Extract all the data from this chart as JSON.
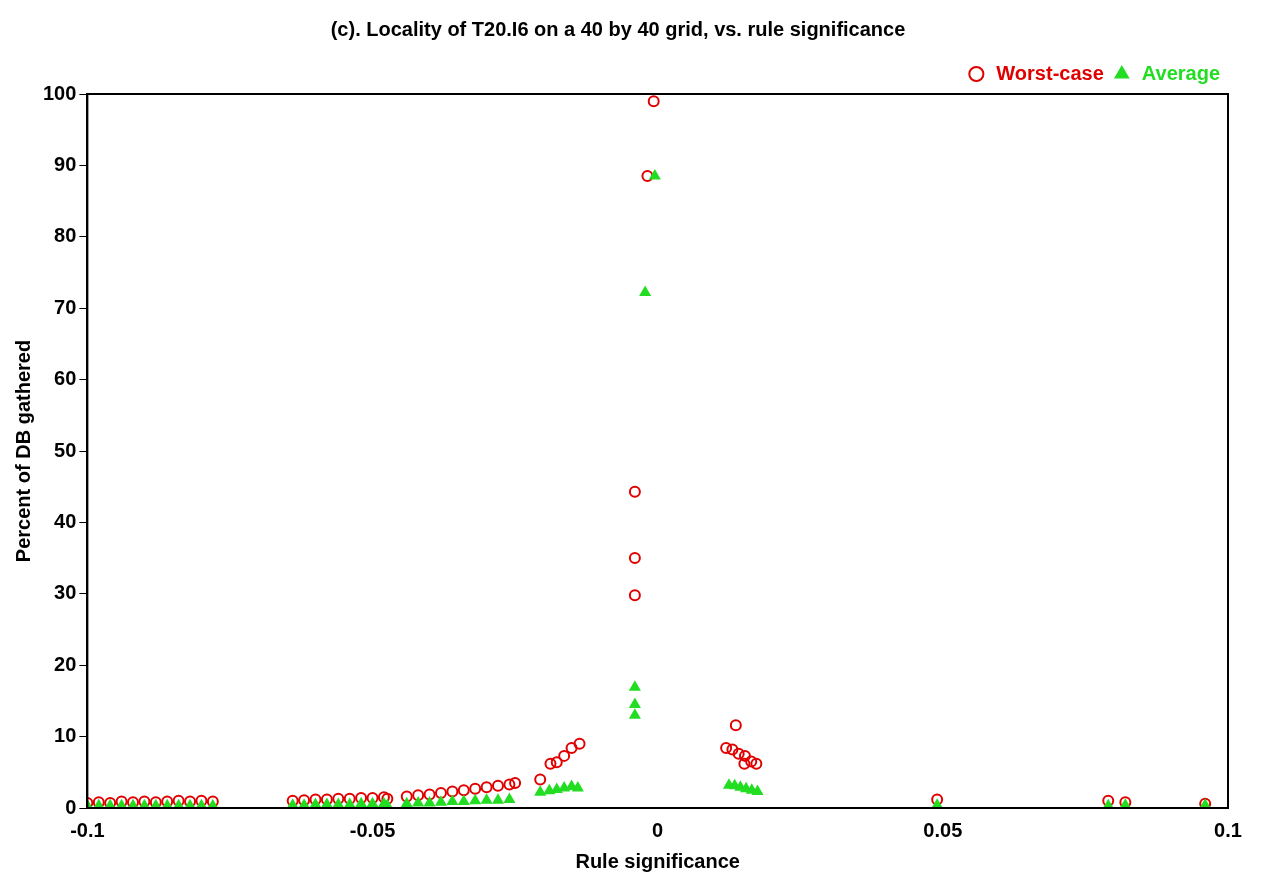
{
  "chart_data": {
    "type": "scatter",
    "title": "(c). Locality of T20.I6 on a 40 by 40 grid, vs. rule significance",
    "xlabel": "Rule significance",
    "ylabel": "Percent of DB gathered",
    "xlim": [
      -0.1,
      0.1
    ],
    "ylim": [
      0,
      100
    ],
    "xticks": [
      -0.1,
      -0.05,
      0,
      0.05,
      0.1
    ],
    "yticks": [
      0,
      10,
      20,
      30,
      40,
      50,
      60,
      70,
      80,
      90,
      100
    ],
    "legend": "top right",
    "grid": false,
    "series": [
      {
        "name": "Worst-case",
        "color": "#e00000",
        "marker": "circle",
        "x": [
          -0.1,
          -0.098,
          -0.096,
          -0.094,
          -0.092,
          -0.09,
          -0.088,
          -0.086,
          -0.084,
          -0.082,
          -0.08,
          -0.078,
          -0.064,
          -0.062,
          -0.06,
          -0.058,
          -0.056,
          -0.054,
          -0.052,
          -0.05,
          -0.048,
          -0.0474,
          -0.044,
          -0.042,
          -0.04,
          -0.038,
          -0.036,
          -0.034,
          -0.032,
          -0.03,
          -0.028,
          -0.026,
          -0.025,
          -0.0206,
          -0.0188,
          -0.0177,
          -0.0164,
          -0.0151,
          -0.0137,
          -0.004,
          -0.004,
          -0.004,
          -0.0018,
          -0.0007,
          0.0137,
          0.012,
          0.0131,
          0.0142,
          0.0153,
          0.0164,
          0.0173,
          0.0152,
          0.049,
          0.079,
          0.082,
          0.096
        ],
        "values": [
          0.7,
          0.8,
          0.7,
          0.9,
          0.8,
          0.9,
          0.8,
          0.9,
          1.0,
          0.9,
          1.0,
          0.9,
          1.0,
          1.1,
          1.2,
          1.2,
          1.3,
          1.3,
          1.4,
          1.4,
          1.5,
          1.3,
          1.6,
          1.8,
          1.9,
          2.1,
          2.3,
          2.5,
          2.7,
          2.9,
          3.1,
          3.3,
          3.5,
          4.0,
          6.2,
          6.4,
          7.3,
          8.4,
          9.0,
          44.3,
          35,
          29.8,
          88.5,
          99,
          11.6,
          8.4,
          8.2,
          7.6,
          7.3,
          6.5,
          6.2,
          6.2,
          1.2,
          1.0,
          0.8,
          0.6
        ]
      },
      {
        "name": "Average",
        "color": "#22dd22",
        "marker": "triangle",
        "x": [
          -0.1,
          -0.098,
          -0.096,
          -0.094,
          -0.092,
          -0.09,
          -0.088,
          -0.086,
          -0.084,
          -0.082,
          -0.08,
          -0.078,
          -0.064,
          -0.062,
          -0.06,
          -0.058,
          -0.056,
          -0.054,
          -0.052,
          -0.05,
          -0.048,
          -0.0474,
          -0.044,
          -0.042,
          -0.04,
          -0.038,
          -0.036,
          -0.034,
          -0.032,
          -0.03,
          -0.028,
          -0.026,
          -0.0206,
          -0.019,
          -0.0177,
          -0.0164,
          -0.0151,
          -0.014,
          -0.004,
          -0.004,
          -0.004,
          -0.0022,
          -0.0005,
          0.0125,
          0.0135,
          0.0145,
          0.0155,
          0.0165,
          0.0175,
          0.049,
          0.079,
          0.082,
          0.096
        ],
        "values": [
          0.3,
          0.3,
          0.3,
          0.3,
          0.3,
          0.3,
          0.3,
          0.3,
          0.3,
          0.3,
          0.3,
          0.3,
          0.4,
          0.4,
          0.5,
          0.5,
          0.5,
          0.5,
          0.6,
          0.6,
          0.6,
          0.3,
          0.6,
          0.7,
          0.7,
          0.8,
          0.9,
          0.9,
          1.0,
          1.1,
          1.1,
          1.2,
          2.2,
          2.4,
          2.6,
          2.8,
          3.0,
          2.8,
          16.9,
          14.5,
          13,
          72.2,
          88.5,
          3.2,
          3.1,
          2.9,
          2.7,
          2.5,
          2.3,
          0.4,
          0.3,
          0.4,
          0.4
        ]
      }
    ]
  }
}
